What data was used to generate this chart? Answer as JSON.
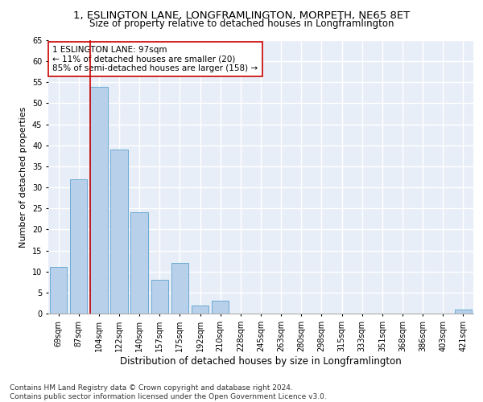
{
  "title1": "1, ESLINGTON LANE, LONGFRAMLINGTON, MORPETH, NE65 8ET",
  "title2": "Size of property relative to detached houses in Longframlington",
  "xlabel": "Distribution of detached houses by size in Longframlington",
  "ylabel": "Number of detached properties",
  "footnote1": "Contains HM Land Registry data © Crown copyright and database right 2024.",
  "footnote2": "Contains public sector information licensed under the Open Government Licence v3.0.",
  "bins": [
    "69sqm",
    "87sqm",
    "104sqm",
    "122sqm",
    "140sqm",
    "157sqm",
    "175sqm",
    "192sqm",
    "210sqm",
    "228sqm",
    "245sqm",
    "263sqm",
    "280sqm",
    "298sqm",
    "315sqm",
    "333sqm",
    "351sqm",
    "368sqm",
    "386sqm",
    "403sqm",
    "421sqm"
  ],
  "values": [
    11,
    32,
    54,
    39,
    24,
    8,
    12,
    2,
    3,
    0,
    0,
    0,
    0,
    0,
    0,
    0,
    0,
    0,
    0,
    0,
    1
  ],
  "bar_color": "#b8d0ea",
  "bar_edge_color": "#6aaad4",
  "background_color": "#e8eef8",
  "grid_color": "#ffffff",
  "red_line_color": "#cc0000",
  "annotation_text": "1 ESLINGTON LANE: 97sqm\n← 11% of detached houses are smaller (20)\n85% of semi-detached houses are larger (158) →",
  "annotation_box_color": "#ffffff",
  "annotation_box_edge": "#cc0000",
  "ylim": [
    0,
    65
  ],
  "yticks": [
    0,
    5,
    10,
    15,
    20,
    25,
    30,
    35,
    40,
    45,
    50,
    55,
    60,
    65
  ],
  "title1_fontsize": 9.5,
  "title2_fontsize": 8.5,
  "xlabel_fontsize": 8.5,
  "ylabel_fontsize": 8,
  "tick_fontsize": 7,
  "annotation_fontsize": 7.5,
  "footnote_fontsize": 6.5
}
